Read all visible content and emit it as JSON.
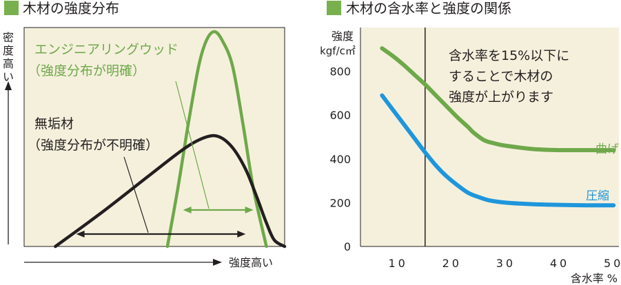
{
  "colors": {
    "panel_bg": "#f5f0dc",
    "green": "#6ea84a",
    "dark": "#231f20",
    "blue": "#1e96dc",
    "header_square": "#78b04e"
  },
  "chart_data": [
    {
      "type": "line",
      "title": "木材の強度分布",
      "xlabel": "強度高い",
      "ylabel": "密度高い",
      "grid": false,
      "series": [
        {
          "name": "エンジニアリングウッド",
          "x": [
            0.55,
            0.59,
            0.63,
            0.67,
            0.7,
            0.73,
            0.76,
            0.8,
            0.84,
            0.88,
            0.93
          ],
          "y": [
            0.0,
            0.27,
            0.57,
            0.84,
            0.96,
            1.0,
            0.96,
            0.84,
            0.57,
            0.27,
            0.0
          ]
        },
        {
          "name": "無垢材",
          "x": [
            0.12,
            0.3,
            0.48,
            0.62,
            0.7,
            0.75,
            0.8,
            0.85,
            0.89,
            0.93,
            0.96,
            1.0
          ],
          "y": [
            0.0,
            0.16,
            0.33,
            0.46,
            0.51,
            0.51,
            0.46,
            0.36,
            0.24,
            0.11,
            0.03,
            0.0
          ]
        }
      ],
      "annotations": {
        "engineered_wood_name": "エンジニアリングウッド",
        "engineered_wood_note": "（強度分布が明確）",
        "solid_wood_name": "無垢材",
        "solid_wood_note": "（強度分布が不明確）"
      },
      "spread_arrows": {
        "engineered_wood": [
          0.61,
          0.88
        ],
        "solid_wood": [
          0.2,
          0.85
        ]
      }
    },
    {
      "type": "line",
      "title": "木材の含水率と強度の関係",
      "xlabel": "含水率 %",
      "ylabel": "強度",
      "yunit": "kgf/c㎡",
      "x_ticks": [
        10,
        20,
        30,
        40,
        50
      ],
      "y_ticks": [
        0,
        200,
        400,
        600,
        800
      ],
      "xlim": [
        3,
        51
      ],
      "ylim": [
        0,
        1000
      ],
      "vline_x": 15,
      "grid": false,
      "annotation": [
        "含水率を15%以下に",
        "することで木材の",
        "強度が上がります"
      ],
      "series": [
        {
          "name": "曲げ",
          "x": [
            7,
            9,
            11,
            13,
            15,
            17,
            19,
            21,
            23,
            24,
            26,
            28,
            30,
            35,
            40,
            45,
            50
          ],
          "y": [
            905,
            870,
            830,
            785,
            740,
            690,
            640,
            590,
            545,
            520,
            485,
            470,
            460,
            445,
            440,
            440,
            440
          ]
        },
        {
          "name": "圧縮",
          "x": [
            7,
            9,
            11,
            13,
            15,
            17,
            19,
            21,
            23,
            25,
            27,
            30,
            35,
            40,
            45,
            50
          ],
          "y": [
            690,
            625,
            560,
            495,
            430,
            370,
            320,
            280,
            245,
            225,
            210,
            200,
            193,
            190,
            188,
            188
          ]
        }
      ]
    }
  ]
}
